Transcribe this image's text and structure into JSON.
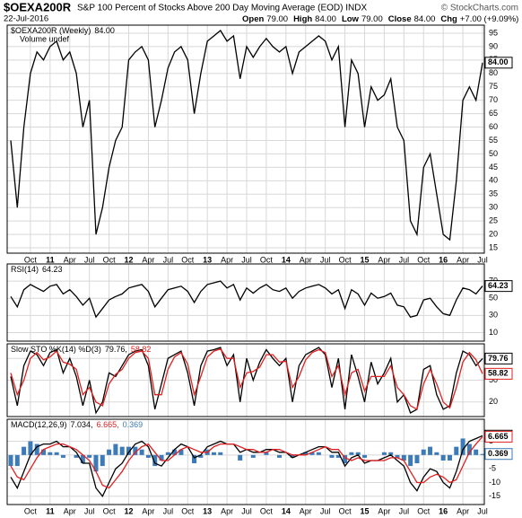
{
  "header": {
    "symbol": "$OEXA200R",
    "title": "S&P 100 Percent of Stocks Above 200 Day Moving Average (EOD) INDX",
    "credit": "© StockCharts.com",
    "date": "22-Jul-2016",
    "quote": [
      {
        "label": "Open",
        "value": "79.00"
      },
      {
        "label": "High",
        "value": "84.00"
      },
      {
        "label": "Low",
        "value": "79.00"
      },
      {
        "label": "Close",
        "value": "84.00"
      },
      {
        "label": "Chg",
        "value": "+7.00 (+9.09%)"
      }
    ]
  },
  "chart_data": [
    {
      "type": "line",
      "legend": [
        "$OEXA200R (Weekly)",
        "84.00"
      ],
      "note": "Volume undef",
      "categories": [
        null,
        null,
        null,
        "Oct",
        null,
        null,
        "11",
        null,
        null,
        "Apr",
        null,
        null,
        "Jul",
        null,
        null,
        "Oct",
        null,
        null,
        "12",
        null,
        null,
        "Apr",
        null,
        null,
        "Jul",
        null,
        null,
        "Oct",
        null,
        null,
        "13",
        null,
        null,
        "Apr",
        null,
        null,
        "Jul",
        null,
        null,
        "Oct",
        null,
        null,
        "14",
        null,
        null,
        "Apr",
        null,
        null,
        "Jul",
        null,
        null,
        "Oct",
        null,
        null,
        "15",
        null,
        null,
        "Apr",
        null,
        null,
        "Jul",
        null,
        null,
        "Oct",
        null,
        null,
        "16",
        null,
        null,
        "Apr",
        null,
        null,
        "Jul"
      ],
      "ylim": [
        13,
        98
      ],
      "yticks": [
        15,
        20,
        25,
        30,
        35,
        40,
        45,
        50,
        55,
        60,
        65,
        70,
        75,
        80,
        85,
        90,
        95
      ],
      "grid": true,
      "series": [
        {
          "color": "#000000",
          "last_label": "84.00",
          "values": [
            55,
            30,
            60,
            80,
            88,
            85,
            90,
            92,
            85,
            88,
            80,
            60,
            70,
            20,
            30,
            45,
            55,
            60,
            85,
            88,
            90,
            85,
            60,
            70,
            82,
            88,
            90,
            85,
            65,
            80,
            92,
            94,
            96,
            92,
            94,
            78,
            90,
            86,
            90,
            93,
            90,
            88,
            90,
            80,
            88,
            90,
            92,
            94,
            92,
            85,
            90,
            60,
            85,
            80,
            60,
            75,
            70,
            72,
            78,
            60,
            55,
            25,
            20,
            45,
            50,
            35,
            20,
            18,
            40,
            70,
            75,
            70,
            84
          ]
        }
      ]
    },
    {
      "type": "line",
      "legend": [
        "RSI(14)",
        "64.23"
      ],
      "ylim": [
        0,
        90
      ],
      "yticks": [
        10,
        30,
        50,
        70
      ],
      "grid": true,
      "series": [
        {
          "color": "#000000",
          "last_label": "64.23",
          "values": [
            52,
            40,
            60,
            66,
            62,
            58,
            64,
            66,
            55,
            60,
            52,
            42,
            50,
            28,
            38,
            48,
            52,
            55,
            62,
            64,
            66,
            58,
            40,
            50,
            60,
            62,
            64,
            58,
            45,
            58,
            66,
            68,
            70,
            62,
            66,
            48,
            62,
            56,
            62,
            66,
            60,
            58,
            62,
            50,
            58,
            62,
            64,
            66,
            62,
            55,
            60,
            38,
            60,
            55,
            42,
            56,
            50,
            52,
            56,
            42,
            40,
            28,
            30,
            48,
            50,
            40,
            32,
            30,
            48,
            62,
            60,
            55,
            64.23
          ]
        }
      ]
    },
    {
      "type": "line",
      "legend": [
        "Slow STO %K(14) %D(3)",
        "79.76,",
        "58.82"
      ],
      "ylim": [
        0,
        100
      ],
      "yticks": [
        20,
        50,
        80
      ],
      "grid": true,
      "series": [
        {
          "color": "#000000",
          "last_label": "79.76",
          "values": [
            55,
            15,
            70,
            90,
            85,
            70,
            88,
            92,
            60,
            80,
            55,
            15,
            50,
            5,
            20,
            60,
            55,
            70,
            85,
            90,
            92,
            70,
            10,
            45,
            80,
            85,
            90,
            60,
            15,
            70,
            90,
            92,
            95,
            70,
            85,
            20,
            80,
            50,
            75,
            92,
            80,
            70,
            80,
            20,
            70,
            85,
            90,
            95,
            85,
            40,
            80,
            10,
            85,
            55,
            20,
            75,
            45,
            60,
            80,
            20,
            30,
            5,
            10,
            65,
            70,
            30,
            10,
            15,
            60,
            90,
            85,
            70,
            79.76
          ]
        },
        {
          "color": "#e02020",
          "last_label": "58.82",
          "values": [
            60,
            30,
            50,
            80,
            88,
            78,
            82,
            90,
            75,
            72,
            65,
            30,
            40,
            20,
            15,
            45,
            58,
            65,
            80,
            88,
            90,
            80,
            30,
            30,
            65,
            82,
            88,
            72,
            30,
            55,
            82,
            90,
            93,
            80,
            80,
            40,
            60,
            62,
            68,
            85,
            85,
            75,
            76,
            40,
            55,
            78,
            88,
            92,
            88,
            55,
            70,
            30,
            60,
            65,
            35,
            55,
            55,
            55,
            70,
            40,
            30,
            15,
            10,
            45,
            65,
            45,
            20,
            12,
            40,
            75,
            88,
            78,
            58.82
          ]
        }
      ]
    },
    {
      "type": "line",
      "legend": [
        "MACD(12,26,9)",
        "7.034,",
        "6.665,",
        "0.369"
      ],
      "categories": [
        null,
        null,
        null,
        "Oct",
        null,
        null,
        "11",
        null,
        null,
        "Apr",
        null,
        null,
        "Jul",
        null,
        null,
        "Oct",
        null,
        null,
        "12",
        null,
        null,
        "Apr",
        null,
        null,
        "Jul",
        null,
        null,
        "Oct",
        null,
        null,
        "13",
        null,
        null,
        "Apr",
        null,
        null,
        "Jul",
        null,
        null,
        "Oct",
        null,
        null,
        "14",
        null,
        null,
        "Apr",
        null,
        null,
        "Jul",
        null,
        null,
        "Oct",
        null,
        null,
        "15",
        null,
        null,
        "Apr",
        null,
        null,
        "Jul",
        null,
        null,
        "Oct",
        null,
        null,
        "16",
        null,
        null,
        "Apr",
        null,
        null,
        "Jul"
      ],
      "ylim": [
        -18,
        13
      ],
      "yticks": [
        -15,
        -10,
        -5,
        0,
        5
      ],
      "grid": true,
      "series": [
        {
          "color": "#3d7ab8",
          "type": "bar",
          "last_label": "0.369",
          "values": [
            -4,
            -4,
            3,
            5,
            4,
            2,
            1,
            1,
            -1,
            0,
            -1,
            -3,
            -1,
            -6,
            -4,
            2,
            4,
            3,
            3,
            3,
            2,
            -1,
            -4,
            -2,
            1,
            2,
            2,
            0,
            -3,
            -1,
            2,
            1,
            1,
            0,
            0,
            -2,
            0,
            -1,
            0,
            1,
            0,
            -1,
            0,
            -1,
            0,
            1,
            1,
            1,
            0,
            -1,
            -1,
            -3,
            1,
            1,
            -1,
            0,
            0,
            1,
            1,
            -1,
            -2,
            -4,
            -3,
            2,
            3,
            1,
            -2,
            -2,
            3,
            6,
            4,
            2,
            0.369
          ]
        },
        {
          "color": "#000000",
          "last_label": "7.034",
          "values": [
            -8,
            -12,
            -6,
            0,
            3,
            4,
            4,
            5,
            3,
            3,
            1,
            -3,
            -3,
            -12,
            -15,
            -10,
            -5,
            -3,
            1,
            4,
            5,
            3,
            -3,
            -4,
            -1,
            2,
            4,
            3,
            -1,
            0,
            3,
            4,
            5,
            4,
            4,
            1,
            2,
            1,
            1,
            2,
            2,
            1,
            1,
            -1,
            0,
            1,
            2,
            3,
            3,
            1,
            1,
            -4,
            -1,
            0,
            -3,
            -2,
            -2,
            -1,
            0,
            -2,
            -4,
            -10,
            -13,
            -8,
            -5,
            -6,
            -10,
            -12,
            -6,
            2,
            5,
            6,
            7.034
          ]
        },
        {
          "color": "#e02020",
          "last_label": "6.665",
          "values": [
            -4,
            -8,
            -9,
            -5,
            -1,
            2,
            3,
            4,
            4,
            3,
            2,
            0,
            -2,
            -6,
            -11,
            -12,
            -9,
            -6,
            -2,
            1,
            3,
            4,
            1,
            -2,
            -2,
            0,
            2,
            3,
            2,
            1,
            1,
            3,
            4,
            4,
            4,
            3,
            2,
            2,
            1,
            1,
            2,
            2,
            1,
            0,
            0,
            0,
            1,
            2,
            3,
            2,
            2,
            -1,
            -2,
            -1,
            -2,
            -2,
            -2,
            -2,
            -1,
            -1,
            -2,
            -6,
            -10,
            -10,
            -8,
            -7,
            -8,
            -10,
            -9,
            -4,
            1,
            4,
            6.665
          ]
        }
      ]
    }
  ]
}
